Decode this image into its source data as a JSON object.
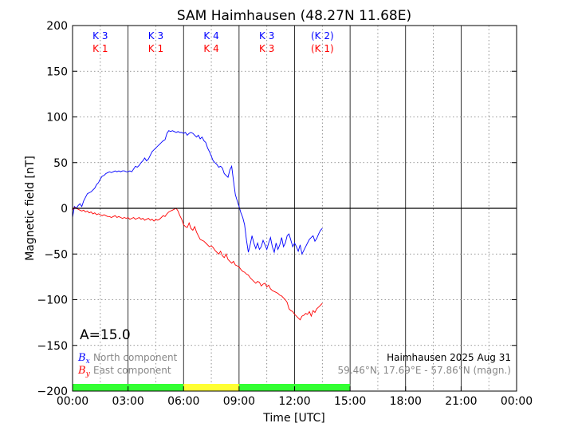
{
  "chart_data": {
    "type": "line",
    "title": "SAM Haimhausen (48.27N 11.68E)",
    "xlabel": "Time [UTC]",
    "ylabel": "Magnetic field [nT]",
    "xlim": [
      0,
      24
    ],
    "ylim": [
      -200,
      200
    ],
    "x_tick_values": [
      0,
      3,
      6,
      9,
      12,
      15,
      18,
      21,
      24
    ],
    "x_tick_labels": [
      "00:00",
      "03:00",
      "06:00",
      "09:00",
      "12:00",
      "15:00",
      "18:00",
      "21:00",
      "00:00"
    ],
    "y_tick_values": [
      200,
      150,
      100,
      50,
      0,
      -50,
      -100,
      -150,
      -200
    ],
    "y_tick_labels": [
      "200",
      "150",
      "100",
      "50",
      "0",
      "−50",
      "−100",
      "−150",
      "−200"
    ],
    "grid": true,
    "series": [
      {
        "name": "North component",
        "symbol": "B",
        "subscript": "x",
        "color": "#0000ff",
        "x": [
          0.0,
          0.1,
          0.2,
          0.3,
          0.4,
          0.5,
          0.6,
          0.7,
          0.8,
          0.9,
          1.0,
          1.1,
          1.2,
          1.3,
          1.4,
          1.5,
          1.6,
          1.7,
          1.8,
          1.9,
          2.0,
          2.1,
          2.2,
          2.3,
          2.4,
          2.5,
          2.6,
          2.7,
          2.8,
          2.9,
          3.0,
          3.1,
          3.2,
          3.3,
          3.4,
          3.5,
          3.6,
          3.7,
          3.8,
          3.9,
          4.0,
          4.1,
          4.2,
          4.3,
          4.4,
          4.5,
          4.6,
          4.7,
          4.8,
          4.9,
          5.0,
          5.1,
          5.2,
          5.3,
          5.4,
          5.5,
          5.6,
          5.7,
          5.8,
          5.9,
          6.0,
          6.1,
          6.2,
          6.3,
          6.4,
          6.5,
          6.6,
          6.7,
          6.8,
          6.9,
          7.0,
          7.1,
          7.2,
          7.3,
          7.4,
          7.5,
          7.6,
          7.7,
          7.8,
          7.9,
          8.0,
          8.1,
          8.2,
          8.3,
          8.4,
          8.5,
          8.6,
          8.7,
          8.8,
          8.9,
          9.0,
          9.1,
          9.2,
          9.3,
          9.4,
          9.5,
          9.6,
          9.7,
          9.8,
          9.9,
          10.0,
          10.1,
          10.2,
          10.3,
          10.4,
          10.5,
          10.6,
          10.7,
          10.8,
          10.9,
          11.0,
          11.1,
          11.2,
          11.3,
          11.4,
          11.5,
          11.6,
          11.7,
          11.8,
          11.9,
          12.0,
          12.1,
          12.2,
          12.3,
          12.4,
          12.5,
          12.6,
          12.7,
          12.8,
          12.9,
          13.0,
          13.1,
          13.2,
          13.3,
          13.4,
          13.5
        ],
        "values": [
          -10,
          2,
          0,
          3,
          5,
          2,
          8,
          12,
          16,
          17,
          18,
          20,
          22,
          26,
          28,
          32,
          35,
          36,
          38,
          39,
          40,
          39,
          40,
          41,
          40,
          41,
          40,
          41,
          41,
          40,
          40,
          41,
          40,
          43,
          46,
          45,
          47,
          50,
          52,
          55,
          52,
          54,
          58,
          62,
          64,
          66,
          68,
          70,
          72,
          74,
          75,
          82,
          85,
          84,
          85,
          84,
          83,
          84,
          83,
          83,
          82,
          83,
          80,
          82,
          83,
          82,
          80,
          78,
          80,
          76,
          78,
          74,
          72,
          66,
          62,
          57,
          52,
          50,
          48,
          45,
          46,
          44,
          38,
          36,
          34,
          42,
          46,
          30,
          15,
          8,
          2,
          -5,
          -10,
          -18,
          -35,
          -48,
          -40,
          -30,
          -38,
          -44,
          -38,
          -45,
          -42,
          -35,
          -40,
          -45,
          -38,
          -32,
          -42,
          -48,
          -38,
          -45,
          -40,
          -32,
          -42,
          -38,
          -30,
          -28,
          -35,
          -42,
          -38,
          -42,
          -47,
          -40,
          -50,
          -46,
          -42,
          -38,
          -34,
          -32,
          -30,
          -36,
          -33,
          -28,
          -24,
          -22
        ]
      },
      {
        "name": "East component",
        "symbol": "B",
        "subscript": "y",
        "color": "#ff0000",
        "x": [
          0.0,
          0.1,
          0.2,
          0.3,
          0.4,
          0.5,
          0.6,
          0.7,
          0.8,
          0.9,
          1.0,
          1.1,
          1.2,
          1.3,
          1.4,
          1.5,
          1.6,
          1.7,
          1.8,
          1.9,
          2.0,
          2.1,
          2.2,
          2.3,
          2.4,
          2.5,
          2.6,
          2.7,
          2.8,
          2.9,
          3.0,
          3.1,
          3.2,
          3.3,
          3.4,
          3.5,
          3.6,
          3.7,
          3.8,
          3.9,
          4.0,
          4.1,
          4.2,
          4.3,
          4.4,
          4.5,
          4.6,
          4.7,
          4.8,
          4.9,
          5.0,
          5.1,
          5.2,
          5.3,
          5.4,
          5.5,
          5.6,
          5.7,
          5.8,
          5.9,
          6.0,
          6.1,
          6.2,
          6.3,
          6.4,
          6.5,
          6.6,
          6.7,
          6.8,
          6.9,
          7.0,
          7.1,
          7.2,
          7.3,
          7.4,
          7.5,
          7.6,
          7.7,
          7.8,
          7.9,
          8.0,
          8.1,
          8.2,
          8.3,
          8.4,
          8.5,
          8.6,
          8.7,
          8.8,
          8.9,
          9.0,
          9.1,
          9.2,
          9.3,
          9.4,
          9.5,
          9.6,
          9.7,
          9.8,
          9.9,
          10.0,
          10.1,
          10.2,
          10.3,
          10.4,
          10.5,
          10.6,
          10.7,
          10.8,
          10.9,
          11.0,
          11.1,
          11.2,
          11.3,
          11.4,
          11.5,
          11.6,
          11.7,
          11.8,
          11.9,
          12.0,
          12.1,
          12.2,
          12.3,
          12.4,
          12.5,
          12.6,
          12.7,
          12.8,
          12.9,
          13.0,
          13.1,
          13.2,
          13.3,
          13.4,
          13.5
        ],
        "values": [
          -2,
          1,
          0,
          -1,
          -2,
          -3,
          -2,
          -4,
          -3,
          -5,
          -4,
          -6,
          -5,
          -7,
          -6,
          -7,
          -8,
          -7,
          -8,
          -9,
          -9,
          -10,
          -9,
          -8,
          -10,
          -9,
          -10,
          -11,
          -10,
          -11,
          -10,
          -12,
          -11,
          -10,
          -12,
          -11,
          -10,
          -12,
          -11,
          -13,
          -12,
          -11,
          -13,
          -12,
          -14,
          -12,
          -13,
          -12,
          -10,
          -8,
          -9,
          -6,
          -4,
          -3,
          -2,
          -1,
          0,
          -3,
          -8,
          -12,
          -18,
          -20,
          -21,
          -16,
          -22,
          -24,
          -20,
          -26,
          -30,
          -34,
          -35,
          -36,
          -38,
          -40,
          -42,
          -41,
          -43,
          -46,
          -48,
          -50,
          -47,
          -52,
          -54,
          -50,
          -56,
          -58,
          -60,
          -58,
          -62,
          -63,
          -64,
          -67,
          -69,
          -70,
          -72,
          -73,
          -76,
          -78,
          -80,
          -82,
          -80,
          -81,
          -85,
          -83,
          -82,
          -86,
          -84,
          -88,
          -90,
          -91,
          -92,
          -93,
          -95,
          -96,
          -98,
          -100,
          -103,
          -110,
          -112,
          -113,
          -116,
          -118,
          -120,
          -122,
          -118,
          -117,
          -115,
          -116,
          -113,
          -118,
          -112,
          -114,
          -110,
          -108,
          -106,
          -104
        ]
      }
    ],
    "k_indices": [
      {
        "x": 1.5,
        "x_label": "K 3",
        "y_label": "K 1"
      },
      {
        "x": 4.5,
        "x_label": "K 3",
        "y_label": "K 1"
      },
      {
        "x": 7.5,
        "x_label": "K 4",
        "y_label": "K 4"
      },
      {
        "x": 10.5,
        "x_label": "K 3",
        "y_label": "K 3"
      },
      {
        "x": 13.5,
        "x_label": "(K 2)",
        "y_label": "(K 1)"
      }
    ],
    "k_label_colors": {
      "x": "#0000ff",
      "y": "#ff0000"
    },
    "activity_bar": [
      {
        "start": 0,
        "end": 6,
        "color": "#33ff33"
      },
      {
        "start": 6,
        "end": 9,
        "color": "#ffff33"
      },
      {
        "start": 9,
        "end": 15,
        "color": "#33ff33"
      }
    ],
    "a_index_label": "A=15.0",
    "station_info": {
      "line1": "Haimhausen 2025 Aug 31",
      "line2": "59.46°N, 17.69°E - 57.86°N (magn.)",
      "line1_color": "#000000",
      "line2_color": "#888888"
    }
  }
}
